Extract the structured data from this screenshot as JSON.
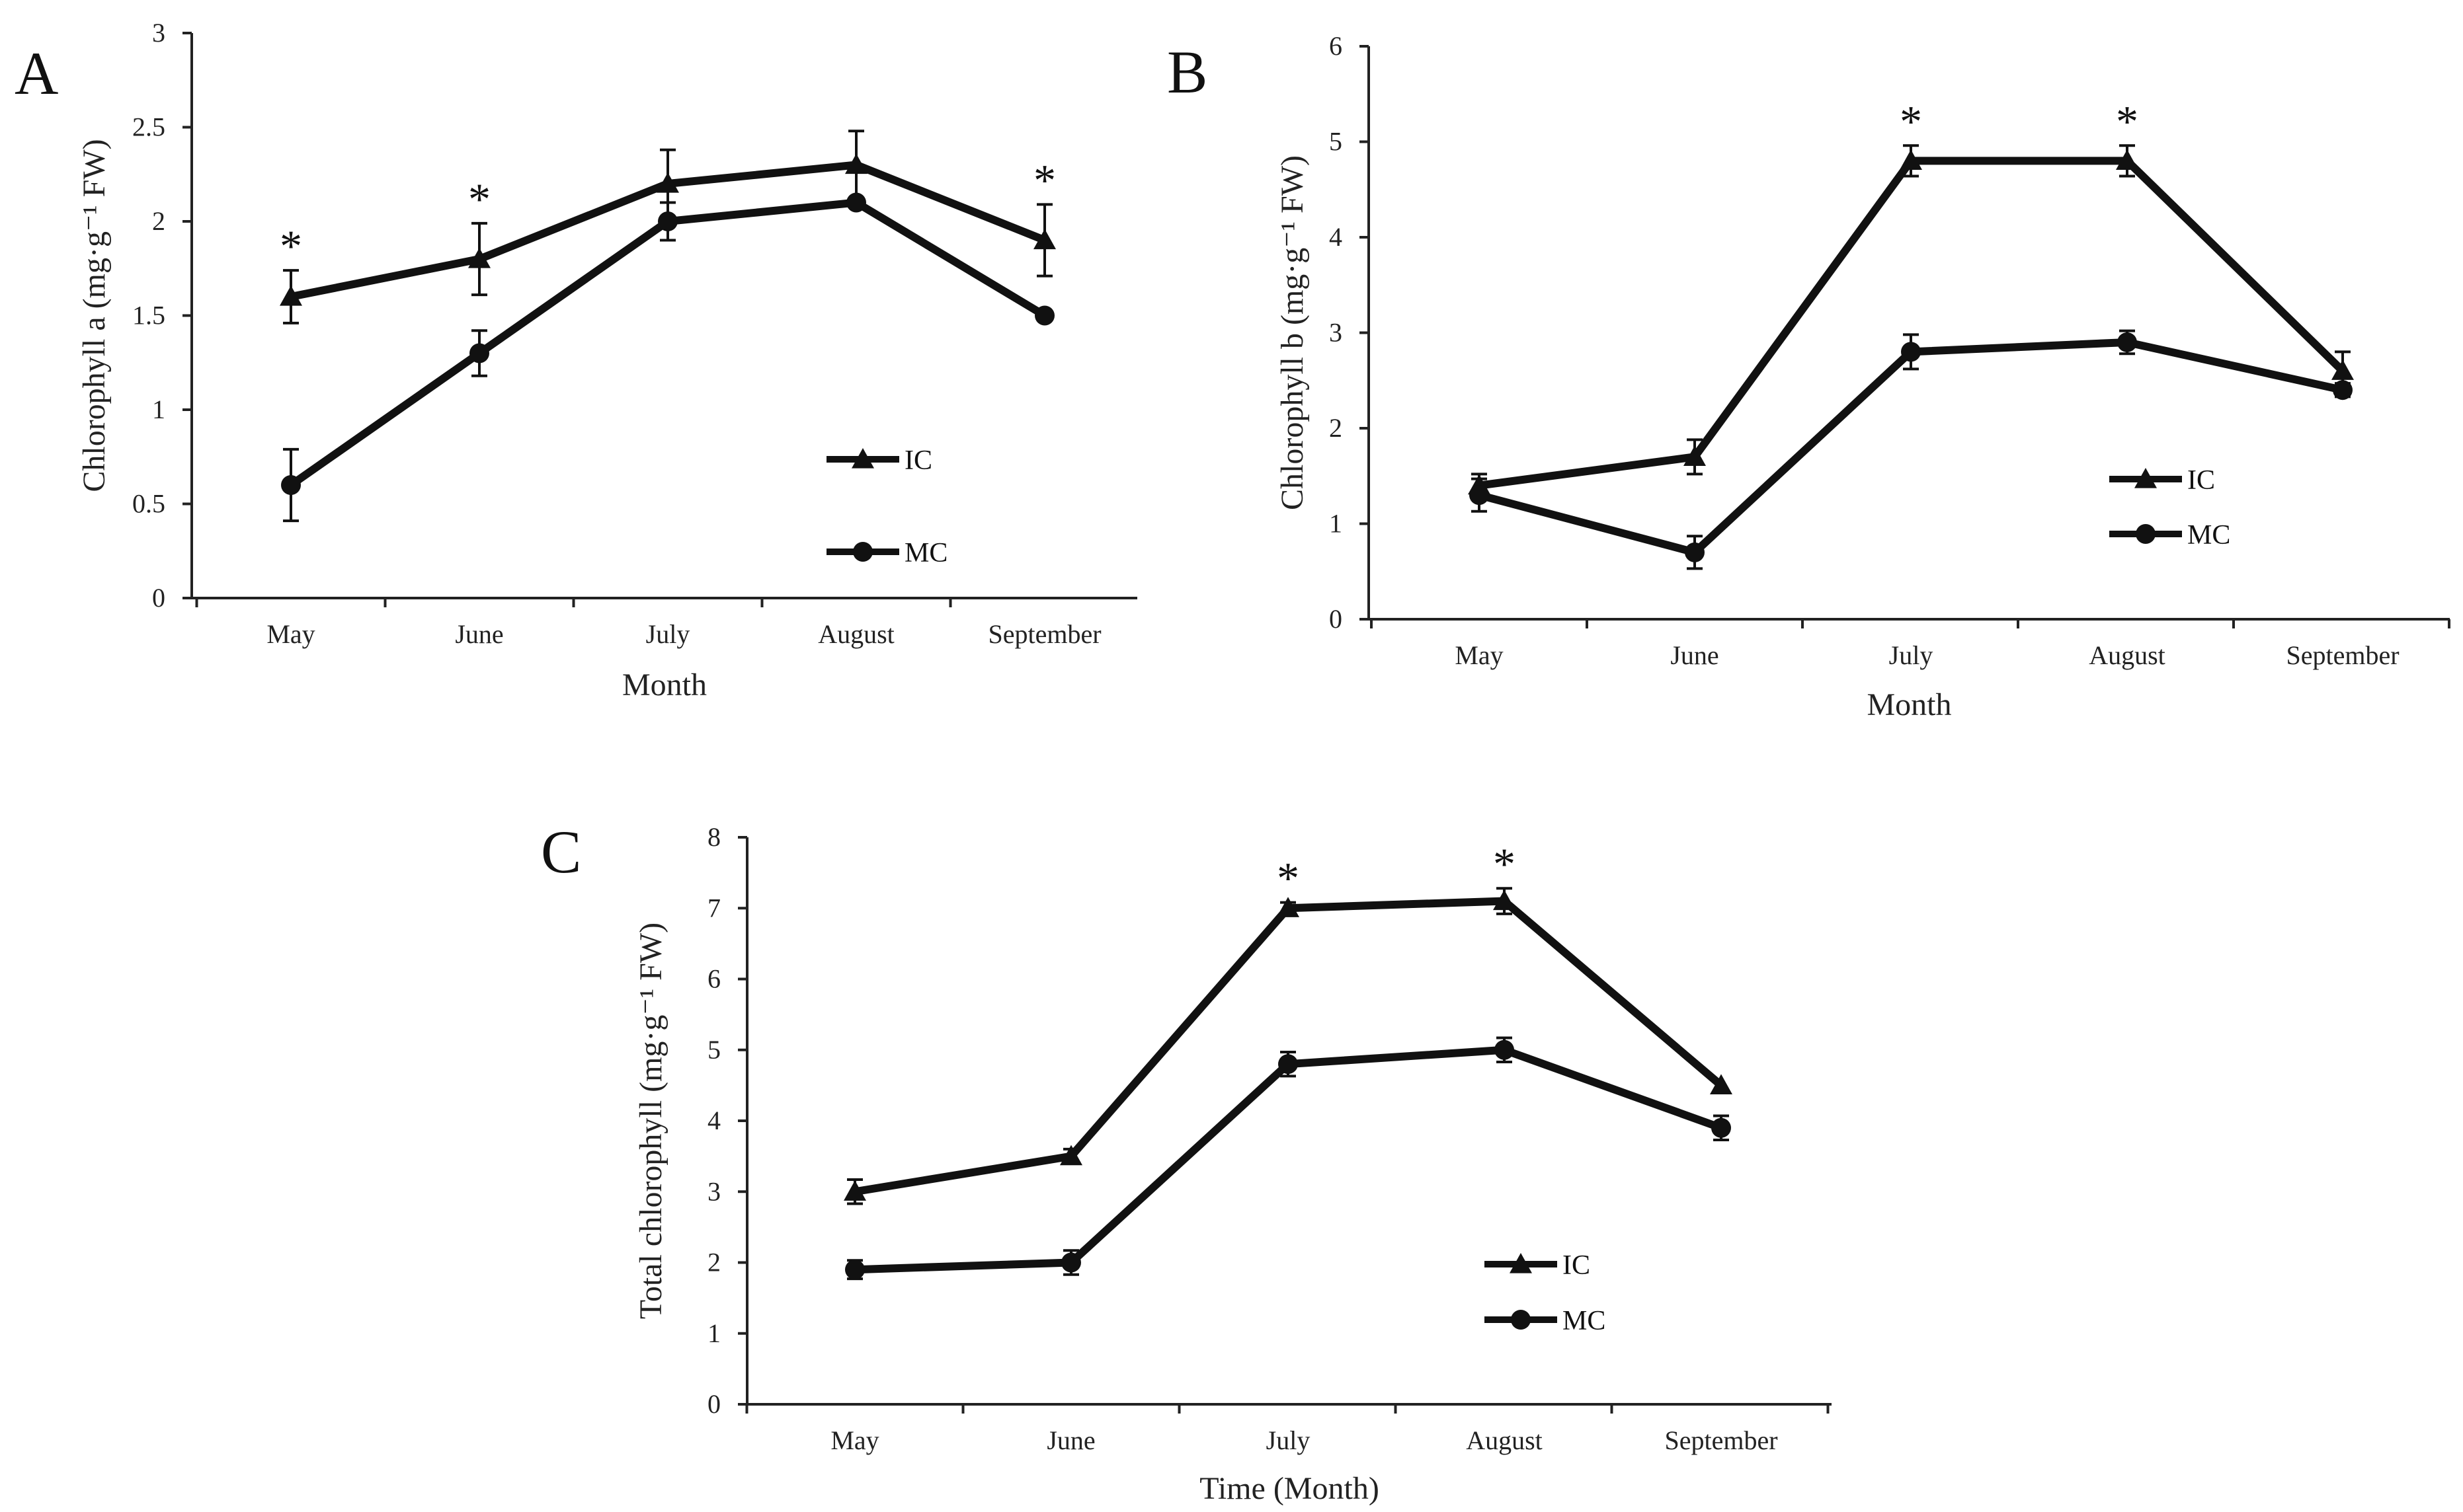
{
  "colors": {
    "line": "#111111",
    "axis": "#222222",
    "background": "#ffffff"
  },
  "chart_data": [
    {
      "type": "line",
      "panel": "A",
      "xlabel": "Month",
      "ylabel": "Chlorophyll a (mg·g⁻¹ FW)",
      "ylim": [
        0,
        3
      ],
      "yticks": [
        "0",
        "0.5",
        "1",
        "1.5",
        "2",
        "2.5",
        "3"
      ],
      "categories": [
        "May",
        "June",
        "July",
        "August",
        "September"
      ],
      "series": [
        {
          "name": "IC",
          "marker": "triangle",
          "values": [
            1.6,
            1.8,
            2.2,
            2.3,
            1.9
          ],
          "errors": [
            0.14,
            0.19,
            0.18,
            0.18,
            0.19
          ]
        },
        {
          "name": "MC",
          "marker": "circle",
          "values": [
            0.6,
            1.3,
            2.0,
            2.1,
            1.5
          ],
          "errors": [
            0.19,
            0.12,
            0.1,
            0.0,
            0.0
          ]
        }
      ],
      "significance": [
        "*",
        "*",
        "",
        "",
        "*"
      ],
      "legend": "center-right"
    },
    {
      "type": "line",
      "panel": "B",
      "xlabel": "Month",
      "ylabel": "Chlorophyll b (mg·g⁻¹ FW)",
      "ylim": [
        0,
        6
      ],
      "yticks": [
        "0",
        "1",
        "2",
        "3",
        "4",
        "5",
        "6"
      ],
      "categories": [
        "May",
        "June",
        "July",
        "August",
        "September"
      ],
      "series": [
        {
          "name": "IC",
          "marker": "triangle",
          "values": [
            1.4,
            1.7,
            4.8,
            4.8,
            2.6
          ],
          "errors": [
            0.12,
            0.18,
            0.16,
            0.16,
            0.2
          ]
        },
        {
          "name": "MC",
          "marker": "circle",
          "values": [
            1.3,
            0.7,
            2.8,
            2.9,
            2.4
          ],
          "errors": [
            0.17,
            0.17,
            0.18,
            0.12,
            0.07
          ]
        }
      ],
      "significance": [
        "",
        "",
        "*",
        "*",
        ""
      ],
      "legend": "center-right"
    },
    {
      "type": "line",
      "panel": "C",
      "xlabel": "Time (Month)",
      "ylabel": "Total chlorophyll (mg·g⁻¹ FW)",
      "ylim": [
        0,
        8
      ],
      "yticks": [
        "0",
        "1",
        "2",
        "3",
        "4",
        "5",
        "6",
        "7",
        "8"
      ],
      "categories": [
        "May",
        "June",
        "July",
        "August",
        "September"
      ],
      "series": [
        {
          "name": "IC",
          "marker": "triangle",
          "values": [
            3.0,
            3.5,
            7.0,
            7.1,
            4.5
          ],
          "errors": [
            0.17,
            0.1,
            0.08,
            0.18,
            0.0
          ]
        },
        {
          "name": "MC",
          "marker": "circle",
          "values": [
            1.9,
            2.0,
            4.8,
            5.0,
            3.9
          ],
          "errors": [
            0.13,
            0.17,
            0.17,
            0.17,
            0.17
          ]
        }
      ],
      "significance": [
        "",
        "",
        "*",
        "*",
        ""
      ],
      "legend": "bottom-center"
    }
  ]
}
